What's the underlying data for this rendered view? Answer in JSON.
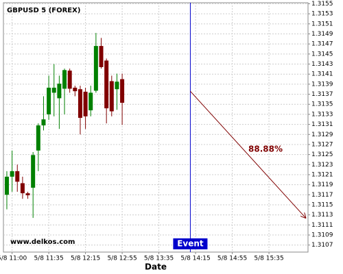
{
  "chart_data": {
    "type": "candlestick",
    "title": "GBPUSD 5 (FOREX)",
    "watermark": "www.delkos.com",
    "x_label": "Date",
    "x": [
      0,
      1,
      2,
      3,
      4,
      5,
      6,
      7,
      8,
      9,
      10,
      11,
      12,
      13,
      14,
      15,
      16,
      17,
      18,
      19,
      20,
      21,
      22
    ],
    "open": [
      1.3117,
      1.31206,
      1.31217,
      1.31193,
      1.31173,
      1.31184,
      1.31258,
      1.31308,
      1.3133,
      1.31373,
      1.31362,
      1.31381,
      1.31417,
      1.31383,
      1.3138,
      1.31375,
      1.31338,
      1.31377,
      1.31466,
      1.31437,
      1.31396,
      1.3138,
      1.314
    ],
    "high": [
      1.31217,
      1.31258,
      1.3123,
      1.31206,
      1.31176,
      1.31255,
      1.31312,
      1.31366,
      1.31407,
      1.3143,
      1.31407,
      1.31421,
      1.31421,
      1.31387,
      1.31387,
      1.31383,
      1.31387,
      1.31492,
      1.31482,
      1.31441,
      1.31407,
      1.31411,
      1.31411
    ],
    "low": [
      1.31141,
      1.31176,
      1.31176,
      1.31162,
      1.31162,
      1.31124,
      1.31217,
      1.31298,
      1.31319,
      1.31326,
      1.31301,
      1.3133,
      1.31373,
      1.31366,
      1.3129,
      1.31301,
      1.31326,
      1.31373,
      1.31421,
      1.31312,
      1.31326,
      1.31339,
      1.31309
    ],
    "close": [
      1.31206,
      1.31217,
      1.31196,
      1.31173,
      1.31169,
      1.31249,
      1.31308,
      1.3132,
      1.31383,
      1.31383,
      1.31391,
      1.31418,
      1.31381,
      1.31376,
      1.31323,
      1.31326,
      1.31373,
      1.31466,
      1.31424,
      1.31342,
      1.31336,
      1.31395,
      1.31353
    ],
    "up_color": "#008000",
    "down_color": "#800000",
    "xlim": [
      -0.65,
      57.45
    ],
    "xticks": [
      {
        "value": 1,
        "label": "5/8 11:00"
      },
      {
        "value": 8,
        "label": "5/8 11:35"
      },
      {
        "value": 15,
        "label": "5/8 12:15"
      },
      {
        "value": 22,
        "label": "5/8 12:55"
      },
      {
        "value": 29,
        "label": "5/8 13:35"
      },
      {
        "value": 36,
        "label": "5/8 14:15"
      },
      {
        "value": 43,
        "label": "5/8 14:55"
      },
      {
        "value": 50,
        "label": "5/8 15:35"
      }
    ],
    "ylim": [
      1.31056,
      1.31552
    ],
    "yticks": [
      1.3107,
      1.3109,
      1.3111,
      1.3113,
      1.3115,
      1.3117,
      1.3119,
      1.3121,
      1.3123,
      1.3125,
      1.3127,
      1.3129,
      1.3131,
      1.3133,
      1.3135,
      1.3137,
      1.3139,
      1.3141,
      1.3143,
      1.3145,
      1.3147,
      1.3149,
      1.3151,
      1.3153,
      1.3155
    ],
    "grid": true,
    "event": {
      "label": "Event",
      "x": 35,
      "color": "#0000cc"
    },
    "projection": {
      "x": [
        35,
        57
      ],
      "y": [
        1.31376,
        1.31124
      ],
      "label": "88.88%",
      "color": "#800000"
    }
  }
}
